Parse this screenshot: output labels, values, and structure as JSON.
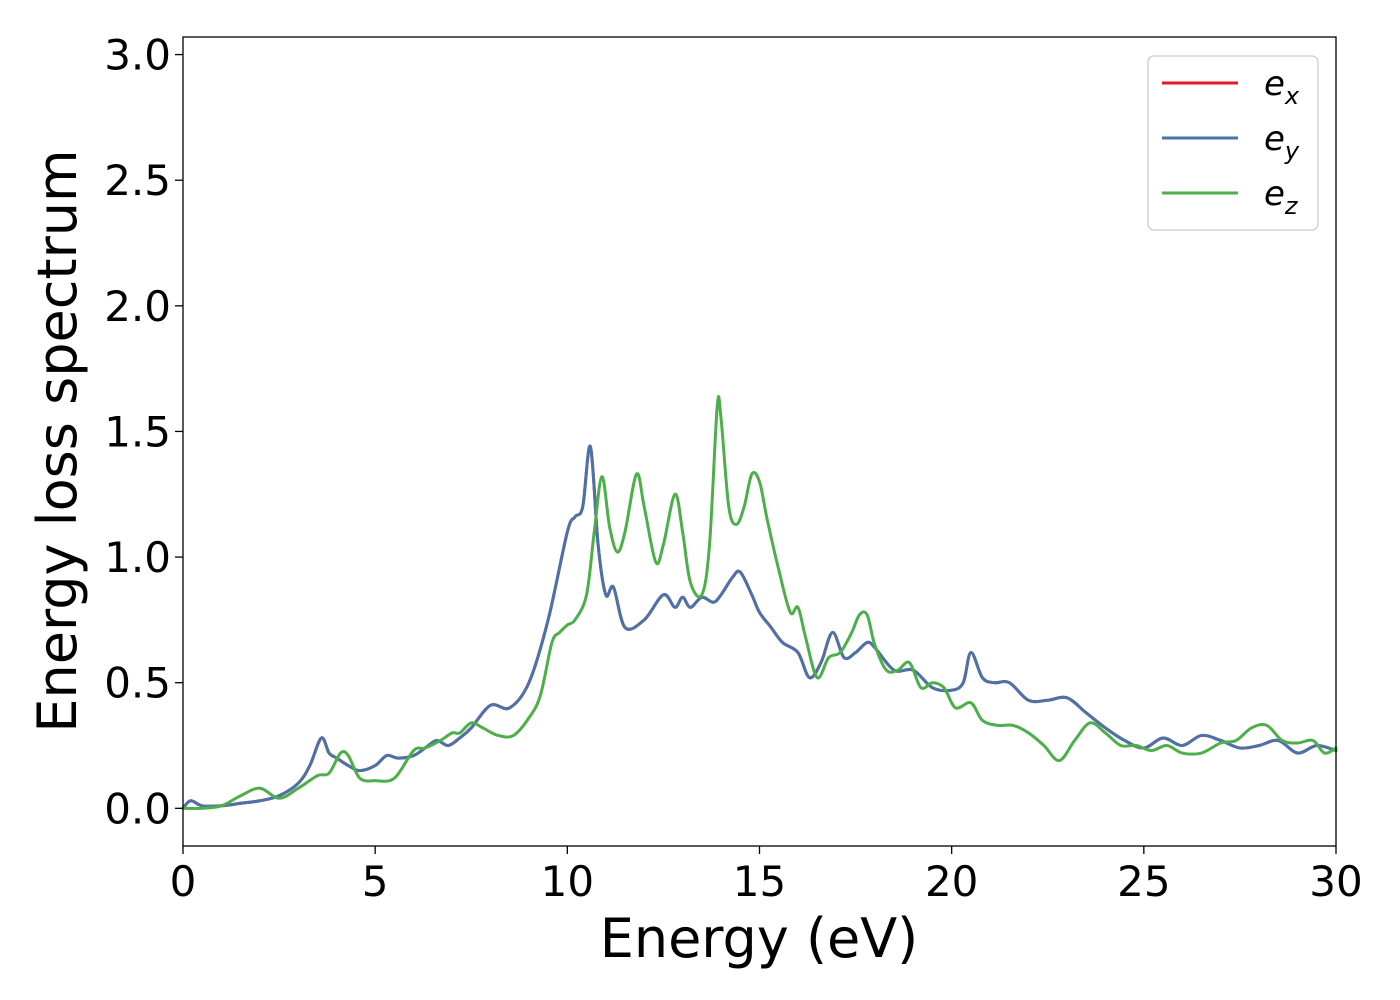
{
  "chart_data": {
    "type": "line",
    "xlabel": "Energy (eV)",
    "ylabel": "Energy loss spectrum",
    "xlim": [
      0,
      30
    ],
    "ylim": [
      -0.15,
      3.07
    ],
    "xticks": [
      0,
      5,
      10,
      15,
      20,
      25,
      30
    ],
    "xtick_labels": [
      "0",
      "5",
      "10",
      "15",
      "20",
      "25",
      "30"
    ],
    "yticks": [
      0.0,
      0.5,
      1.0,
      1.5,
      2.0,
      2.5,
      3.0
    ],
    "ytick_labels": [
      "0.0",
      "0.5",
      "1.0",
      "1.5",
      "2.0",
      "2.5",
      "3.0"
    ],
    "grid": false,
    "legend_position": "top-right",
    "series": [
      {
        "name": "e",
        "subscript": "x",
        "color": "#e41a1c",
        "x": [
          0,
          0.2,
          0.5,
          1,
          1.5,
          2,
          2.5,
          3,
          3.3,
          3.6,
          3.8,
          4,
          4.3,
          4.6,
          5,
          5.3,
          5.6,
          6,
          6.3,
          6.6,
          6.9,
          7.2,
          7.5,
          8,
          8.5,
          9,
          9.5,
          10,
          10.2,
          10.4,
          10.6,
          10.8,
          11,
          11.2,
          11.5,
          12,
          12.5,
          12.8,
          13,
          13.2,
          13.5,
          13.8,
          14,
          14.3,
          14.5,
          14.8,
          15,
          15.3,
          15.6,
          16,
          16.3,
          16.6,
          16.9,
          17.2,
          17.5,
          17.8,
          18,
          18.5,
          19,
          19.5,
          20,
          20.3,
          20.5,
          20.8,
          21.1,
          21.5,
          22,
          22.5,
          23,
          23.5,
          24,
          24.5,
          25,
          25.5,
          26,
          26.5,
          27,
          27.5,
          28,
          28.5,
          29,
          29.5,
          30
        ],
        "values": [
          0.0,
          0.03,
          0.01,
          0.01,
          0.02,
          0.03,
          0.05,
          0.1,
          0.17,
          0.28,
          0.22,
          0.2,
          0.17,
          0.15,
          0.17,
          0.21,
          0.2,
          0.21,
          0.24,
          0.27,
          0.25,
          0.28,
          0.32,
          0.41,
          0.4,
          0.5,
          0.75,
          1.1,
          1.16,
          1.2,
          1.44,
          1.05,
          0.85,
          0.88,
          0.72,
          0.75,
          0.85,
          0.8,
          0.84,
          0.8,
          0.84,
          0.82,
          0.85,
          0.92,
          0.94,
          0.85,
          0.78,
          0.72,
          0.66,
          0.62,
          0.52,
          0.58,
          0.7,
          0.6,
          0.62,
          0.66,
          0.64,
          0.55,
          0.55,
          0.48,
          0.47,
          0.5,
          0.62,
          0.52,
          0.5,
          0.5,
          0.43,
          0.43,
          0.44,
          0.38,
          0.32,
          0.27,
          0.24,
          0.28,
          0.25,
          0.29,
          0.27,
          0.24,
          0.25,
          0.27,
          0.22,
          0.25,
          0.23
        ]
      },
      {
        "name": "e",
        "subscript": "y",
        "color": "#4a73ab",
        "x": [
          0,
          0.2,
          0.5,
          1,
          1.5,
          2,
          2.5,
          3,
          3.3,
          3.6,
          3.8,
          4,
          4.3,
          4.6,
          5,
          5.3,
          5.6,
          6,
          6.3,
          6.6,
          6.9,
          7.2,
          7.5,
          8,
          8.5,
          9,
          9.5,
          10,
          10.2,
          10.4,
          10.6,
          10.8,
          11,
          11.2,
          11.5,
          12,
          12.5,
          12.8,
          13,
          13.2,
          13.5,
          13.8,
          14,
          14.3,
          14.5,
          14.8,
          15,
          15.3,
          15.6,
          16,
          16.3,
          16.6,
          16.9,
          17.2,
          17.5,
          17.8,
          18,
          18.5,
          19,
          19.5,
          20,
          20.3,
          20.5,
          20.8,
          21.1,
          21.5,
          22,
          22.5,
          23,
          23.5,
          24,
          24.5,
          25,
          25.5,
          26,
          26.5,
          27,
          27.5,
          28,
          28.5,
          29,
          29.5,
          30
        ],
        "values": [
          0.0,
          0.03,
          0.01,
          0.01,
          0.02,
          0.03,
          0.05,
          0.1,
          0.17,
          0.28,
          0.22,
          0.2,
          0.17,
          0.15,
          0.17,
          0.21,
          0.2,
          0.21,
          0.24,
          0.27,
          0.25,
          0.28,
          0.32,
          0.41,
          0.4,
          0.5,
          0.75,
          1.1,
          1.16,
          1.2,
          1.44,
          1.05,
          0.85,
          0.88,
          0.72,
          0.75,
          0.85,
          0.8,
          0.84,
          0.8,
          0.84,
          0.82,
          0.85,
          0.92,
          0.94,
          0.85,
          0.78,
          0.72,
          0.66,
          0.62,
          0.52,
          0.58,
          0.7,
          0.6,
          0.62,
          0.66,
          0.64,
          0.55,
          0.55,
          0.48,
          0.47,
          0.5,
          0.62,
          0.52,
          0.5,
          0.5,
          0.43,
          0.43,
          0.44,
          0.38,
          0.32,
          0.27,
          0.24,
          0.28,
          0.25,
          0.29,
          0.27,
          0.24,
          0.25,
          0.27,
          0.22,
          0.25,
          0.23
        ]
      },
      {
        "name": "e",
        "subscript": "z",
        "color": "#4daf4a",
        "x": [
          0,
          0.5,
          1,
          1.5,
          2,
          2.5,
          3,
          3.5,
          3.8,
          4.1,
          4.3,
          4.6,
          5,
          5.5,
          6,
          6.3,
          6.7,
          7,
          7.2,
          7.5,
          7.8,
          8.2,
          8.6,
          9,
          9.3,
          9.6,
          9.8,
          10,
          10.2,
          10.5,
          10.7,
          10.9,
          11.1,
          11.3,
          11.5,
          11.8,
          12,
          12.3,
          12.5,
          12.8,
          13,
          13.2,
          13.5,
          13.7,
          13.9,
          14,
          14.2,
          14.4,
          14.6,
          14.8,
          15,
          15.2,
          15.5,
          15.8,
          16,
          16.2,
          16.5,
          16.8,
          17.1,
          17.4,
          17.6,
          17.8,
          18,
          18.3,
          18.6,
          18.9,
          19.2,
          19.5,
          19.8,
          20.1,
          20.5,
          20.8,
          21.2,
          21.6,
          22,
          22.4,
          22.8,
          23.2,
          23.6,
          24,
          24.4,
          24.8,
          25.2,
          25.6,
          26,
          26.5,
          27,
          27.4,
          27.8,
          28.2,
          28.6,
          29,
          29.4,
          29.7,
          30
        ],
        "values": [
          0.0,
          0.0,
          0.01,
          0.05,
          0.08,
          0.04,
          0.08,
          0.13,
          0.14,
          0.22,
          0.21,
          0.12,
          0.11,
          0.12,
          0.23,
          0.24,
          0.27,
          0.3,
          0.3,
          0.34,
          0.32,
          0.29,
          0.29,
          0.36,
          0.45,
          0.66,
          0.7,
          0.73,
          0.75,
          0.85,
          1.1,
          1.32,
          1.12,
          1.02,
          1.1,
          1.33,
          1.2,
          0.98,
          1.05,
          1.25,
          1.1,
          0.9,
          0.85,
          1.05,
          1.6,
          1.55,
          1.2,
          1.13,
          1.2,
          1.33,
          1.3,
          1.15,
          0.95,
          0.78,
          0.8,
          0.68,
          0.52,
          0.6,
          0.62,
          0.7,
          0.77,
          0.77,
          0.65,
          0.55,
          0.55,
          0.58,
          0.48,
          0.5,
          0.48,
          0.4,
          0.42,
          0.35,
          0.33,
          0.33,
          0.3,
          0.25,
          0.19,
          0.27,
          0.34,
          0.3,
          0.25,
          0.25,
          0.23,
          0.25,
          0.22,
          0.22,
          0.26,
          0.27,
          0.32,
          0.33,
          0.27,
          0.26,
          0.27,
          0.22,
          0.24
        ]
      }
    ]
  }
}
